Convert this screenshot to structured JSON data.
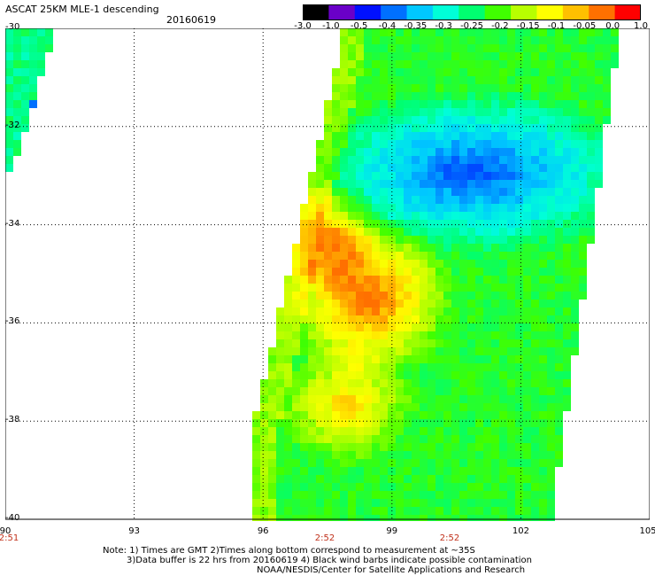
{
  "header": {
    "title": "ASCAT 25KM MLE-1 descending",
    "date": "20160619"
  },
  "colorbar": {
    "labels": [
      "-3.0",
      "-1.0",
      "-0.5",
      "-0.4",
      "-0.35",
      "-0.3",
      "-0.25",
      "-0.2",
      "-0.15",
      "-0.1",
      "-0.05",
      "0.0",
      "1.0"
    ],
    "colors": [
      "#000000",
      "#6a00c8",
      "#0010ff",
      "#0070ff",
      "#00c8ff",
      "#00ffd8",
      "#00ff70",
      "#40ff00",
      "#b8ff00",
      "#ffff00",
      "#ffc000",
      "#ff7000",
      "#ff0000"
    ]
  },
  "map": {
    "lat_labels": [
      "-30",
      "-32",
      "-34",
      "-36",
      "-38",
      "-40"
    ],
    "lon_labels": [
      "90",
      "93",
      "96",
      "99",
      "102",
      "105"
    ],
    "times": [
      "2:51",
      "2:52",
      "2:52"
    ],
    "lon_range": [
      90,
      105
    ],
    "lat_range": [
      -40,
      -30
    ],
    "grid": true
  },
  "notes": {
    "line1": "Note: 1) Times are GMT 2)Times along bottom correspond to measurement at ~35S",
    "line2": "3)Data buffer is 22 hrs from 20160619 4) Black wind barbs indicate possible contamination",
    "line3": "NOAA/NESDIS/Center for Satellite Applications and Research"
  }
}
